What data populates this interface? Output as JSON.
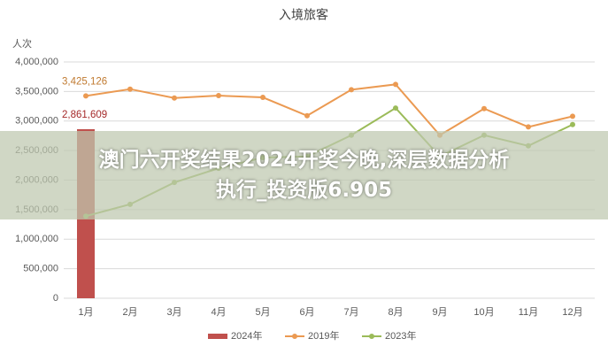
{
  "chart_data": {
    "type": "bar_line",
    "title": "入境旅客",
    "y_label": "人次",
    "categories": [
      "1月",
      "2月",
      "3月",
      "4月",
      "5月",
      "6月",
      "7月",
      "8月",
      "9月",
      "10月",
      "11月",
      "12月"
    ],
    "series": [
      {
        "name": "2024年",
        "type": "bar",
        "color": "#c0504d",
        "values": [
          2861609,
          null,
          null,
          null,
          null,
          null,
          null,
          null,
          null,
          null,
          null,
          null
        ],
        "value_labels": [
          "2,861,609",
          null,
          null,
          null,
          null,
          null,
          null,
          null,
          null,
          null,
          null,
          null
        ]
      },
      {
        "name": "2019年",
        "type": "line",
        "color": "#eb9a52",
        "values": [
          3425126,
          3540000,
          3390000,
          3430000,
          3400000,
          3090000,
          3530000,
          3620000,
          2760000,
          3210000,
          2900000,
          3080000
        ],
        "value_labels": [
          "3,425,126",
          null,
          null,
          null,
          null,
          null,
          null,
          null,
          null,
          null,
          null,
          null
        ]
      },
      {
        "name": "2023年",
        "type": "line",
        "color": "#9bbb59",
        "values": [
          1390000,
          1590000,
          1960000,
          2200000,
          2380000,
          2400000,
          2760000,
          3220000,
          2400000,
          2760000,
          2580000,
          2940000
        ]
      }
    ],
    "ylim": [
      0,
      4000000
    ],
    "yticks": [
      {
        "value": 0,
        "label": "0"
      },
      {
        "value": 500000,
        "label": "500,000"
      },
      {
        "value": 1000000,
        "label": "1,000,000"
      },
      {
        "value": 1500000,
        "label": "1,500,000"
      },
      {
        "value": 2000000,
        "label": "2,000,000"
      },
      {
        "value": 2500000,
        "label": "2,500,000"
      },
      {
        "value": 3000000,
        "label": "3,000,000"
      },
      {
        "value": 3500000,
        "label": "3,500,000"
      },
      {
        "value": 4000000,
        "label": "4,000,000"
      }
    ],
    "grid": true,
    "legend": "bottom"
  },
  "overlay": {
    "lines": [
      "澳门六开奖结果2024开奖今晚,深层数据分析",
      "执行_投资版6.905"
    ]
  }
}
